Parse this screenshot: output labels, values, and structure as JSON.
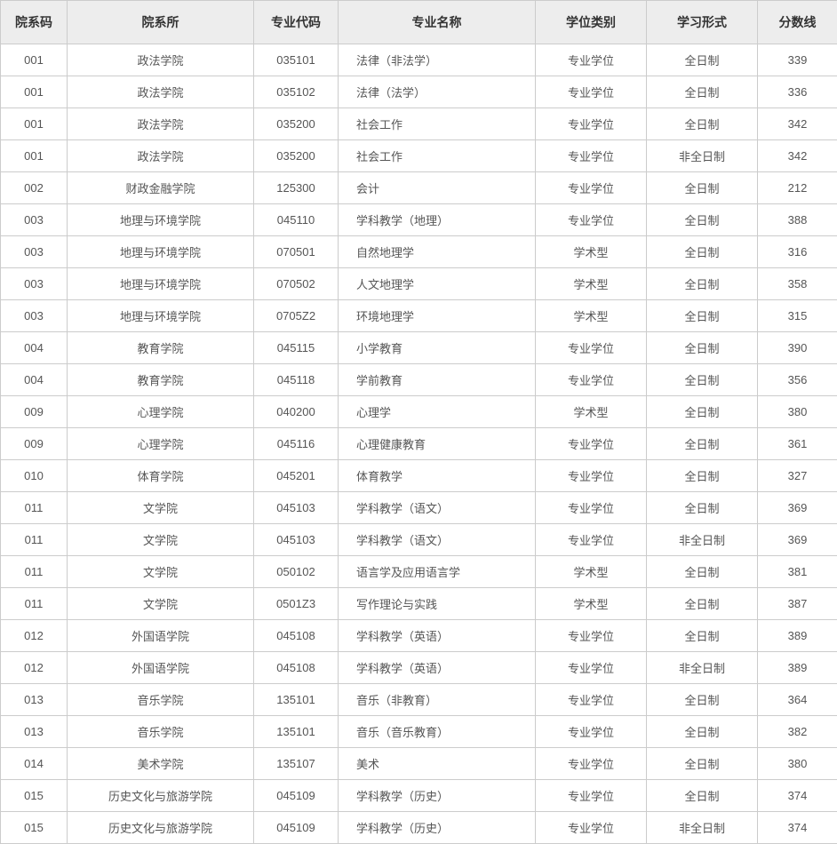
{
  "table": {
    "headers": {
      "dept_code": "院系码",
      "dept_name": "院系所",
      "major_code": "专业代码",
      "major_name": "专业名称",
      "degree_type": "学位类别",
      "study_mode": "学习形式",
      "score": "分数线"
    },
    "rows": [
      {
        "dept_code": "001",
        "dept_name": "政法学院",
        "major_code": "035101",
        "major_name": "法律（非法学）",
        "degree_type": "专业学位",
        "study_mode": "全日制",
        "score": "339"
      },
      {
        "dept_code": "001",
        "dept_name": "政法学院",
        "major_code": "035102",
        "major_name": "法律（法学）",
        "degree_type": "专业学位",
        "study_mode": "全日制",
        "score": "336"
      },
      {
        "dept_code": "001",
        "dept_name": "政法学院",
        "major_code": "035200",
        "major_name": "社会工作",
        "degree_type": "专业学位",
        "study_mode": "全日制",
        "score": "342"
      },
      {
        "dept_code": "001",
        "dept_name": "政法学院",
        "major_code": "035200",
        "major_name": "社会工作",
        "degree_type": "专业学位",
        "study_mode": "非全日制",
        "score": "342"
      },
      {
        "dept_code": "002",
        "dept_name": "财政金融学院",
        "major_code": "125300",
        "major_name": "会计",
        "degree_type": "专业学位",
        "study_mode": "全日制",
        "score": "212"
      },
      {
        "dept_code": "003",
        "dept_name": "地理与环境学院",
        "major_code": "045110",
        "major_name": "学科教学（地理）",
        "degree_type": "专业学位",
        "study_mode": "全日制",
        "score": "388"
      },
      {
        "dept_code": "003",
        "dept_name": "地理与环境学院",
        "major_code": "070501",
        "major_name": "自然地理学",
        "degree_type": "学术型",
        "study_mode": "全日制",
        "score": "316"
      },
      {
        "dept_code": "003",
        "dept_name": "地理与环境学院",
        "major_code": "070502",
        "major_name": "人文地理学",
        "degree_type": "学术型",
        "study_mode": "全日制",
        "score": "358"
      },
      {
        "dept_code": "003",
        "dept_name": "地理与环境学院",
        "major_code": "0705Z2",
        "major_name": "环境地理学",
        "degree_type": "学术型",
        "study_mode": "全日制",
        "score": "315"
      },
      {
        "dept_code": "004",
        "dept_name": "教育学院",
        "major_code": "045115",
        "major_name": "小学教育",
        "degree_type": "专业学位",
        "study_mode": "全日制",
        "score": "390"
      },
      {
        "dept_code": "004",
        "dept_name": "教育学院",
        "major_code": "045118",
        "major_name": "学前教育",
        "degree_type": "专业学位",
        "study_mode": "全日制",
        "score": "356"
      },
      {
        "dept_code": "009",
        "dept_name": "心理学院",
        "major_code": "040200",
        "major_name": "心理学",
        "degree_type": "学术型",
        "study_mode": "全日制",
        "score": "380"
      },
      {
        "dept_code": "009",
        "dept_name": "心理学院",
        "major_code": "045116",
        "major_name": "心理健康教育",
        "degree_type": "专业学位",
        "study_mode": "全日制",
        "score": "361"
      },
      {
        "dept_code": "010",
        "dept_name": "体育学院",
        "major_code": "045201",
        "major_name": "体育教学",
        "degree_type": "专业学位",
        "study_mode": "全日制",
        "score": "327"
      },
      {
        "dept_code": "011",
        "dept_name": "文学院",
        "major_code": "045103",
        "major_name": "学科教学（语文）",
        "degree_type": "专业学位",
        "study_mode": "全日制",
        "score": "369"
      },
      {
        "dept_code": "011",
        "dept_name": "文学院",
        "major_code": "045103",
        "major_name": "学科教学（语文）",
        "degree_type": "专业学位",
        "study_mode": "非全日制",
        "score": "369"
      },
      {
        "dept_code": "011",
        "dept_name": "文学院",
        "major_code": "050102",
        "major_name": "语言学及应用语言学",
        "degree_type": "学术型",
        "study_mode": "全日制",
        "score": "381"
      },
      {
        "dept_code": "011",
        "dept_name": "文学院",
        "major_code": "0501Z3",
        "major_name": "写作理论与实践",
        "degree_type": "学术型",
        "study_mode": "全日制",
        "score": "387"
      },
      {
        "dept_code": "012",
        "dept_name": "外国语学院",
        "major_code": "045108",
        "major_name": "学科教学（英语）",
        "degree_type": "专业学位",
        "study_mode": "全日制",
        "score": "389"
      },
      {
        "dept_code": "012",
        "dept_name": "外国语学院",
        "major_code": "045108",
        "major_name": "学科教学（英语）",
        "degree_type": "专业学位",
        "study_mode": "非全日制",
        "score": "389"
      },
      {
        "dept_code": "013",
        "dept_name": "音乐学院",
        "major_code": "135101",
        "major_name": "音乐（非教育）",
        "degree_type": "专业学位",
        "study_mode": "全日制",
        "score": "364"
      },
      {
        "dept_code": "013",
        "dept_name": "音乐学院",
        "major_code": "135101",
        "major_name": "音乐（音乐教育）",
        "degree_type": "专业学位",
        "study_mode": "全日制",
        "score": "382"
      },
      {
        "dept_code": "014",
        "dept_name": "美术学院",
        "major_code": "135107",
        "major_name": "美术",
        "degree_type": "专业学位",
        "study_mode": "全日制",
        "score": "380"
      },
      {
        "dept_code": "015",
        "dept_name": "历史文化与旅游学院",
        "major_code": "045109",
        "major_name": "学科教学（历史）",
        "degree_type": "专业学位",
        "study_mode": "全日制",
        "score": "374"
      },
      {
        "dept_code": "015",
        "dept_name": "历史文化与旅游学院",
        "major_code": "045109",
        "major_name": "学科教学（历史）",
        "degree_type": "专业学位",
        "study_mode": "非全日制",
        "score": "374"
      }
    ],
    "styling": {
      "header_bg": "#ededed",
      "header_text_color": "#333333",
      "cell_bg": "#ffffff",
      "cell_text_color": "#555555",
      "border_color": "#cccccc",
      "header_font_size": 14,
      "cell_font_size": 13,
      "column_widths": {
        "dept_code": 75,
        "dept_name": 210,
        "major_code": 95,
        "major_name": 222,
        "degree_type": 125,
        "study_mode": 125,
        "score": 90
      }
    }
  }
}
